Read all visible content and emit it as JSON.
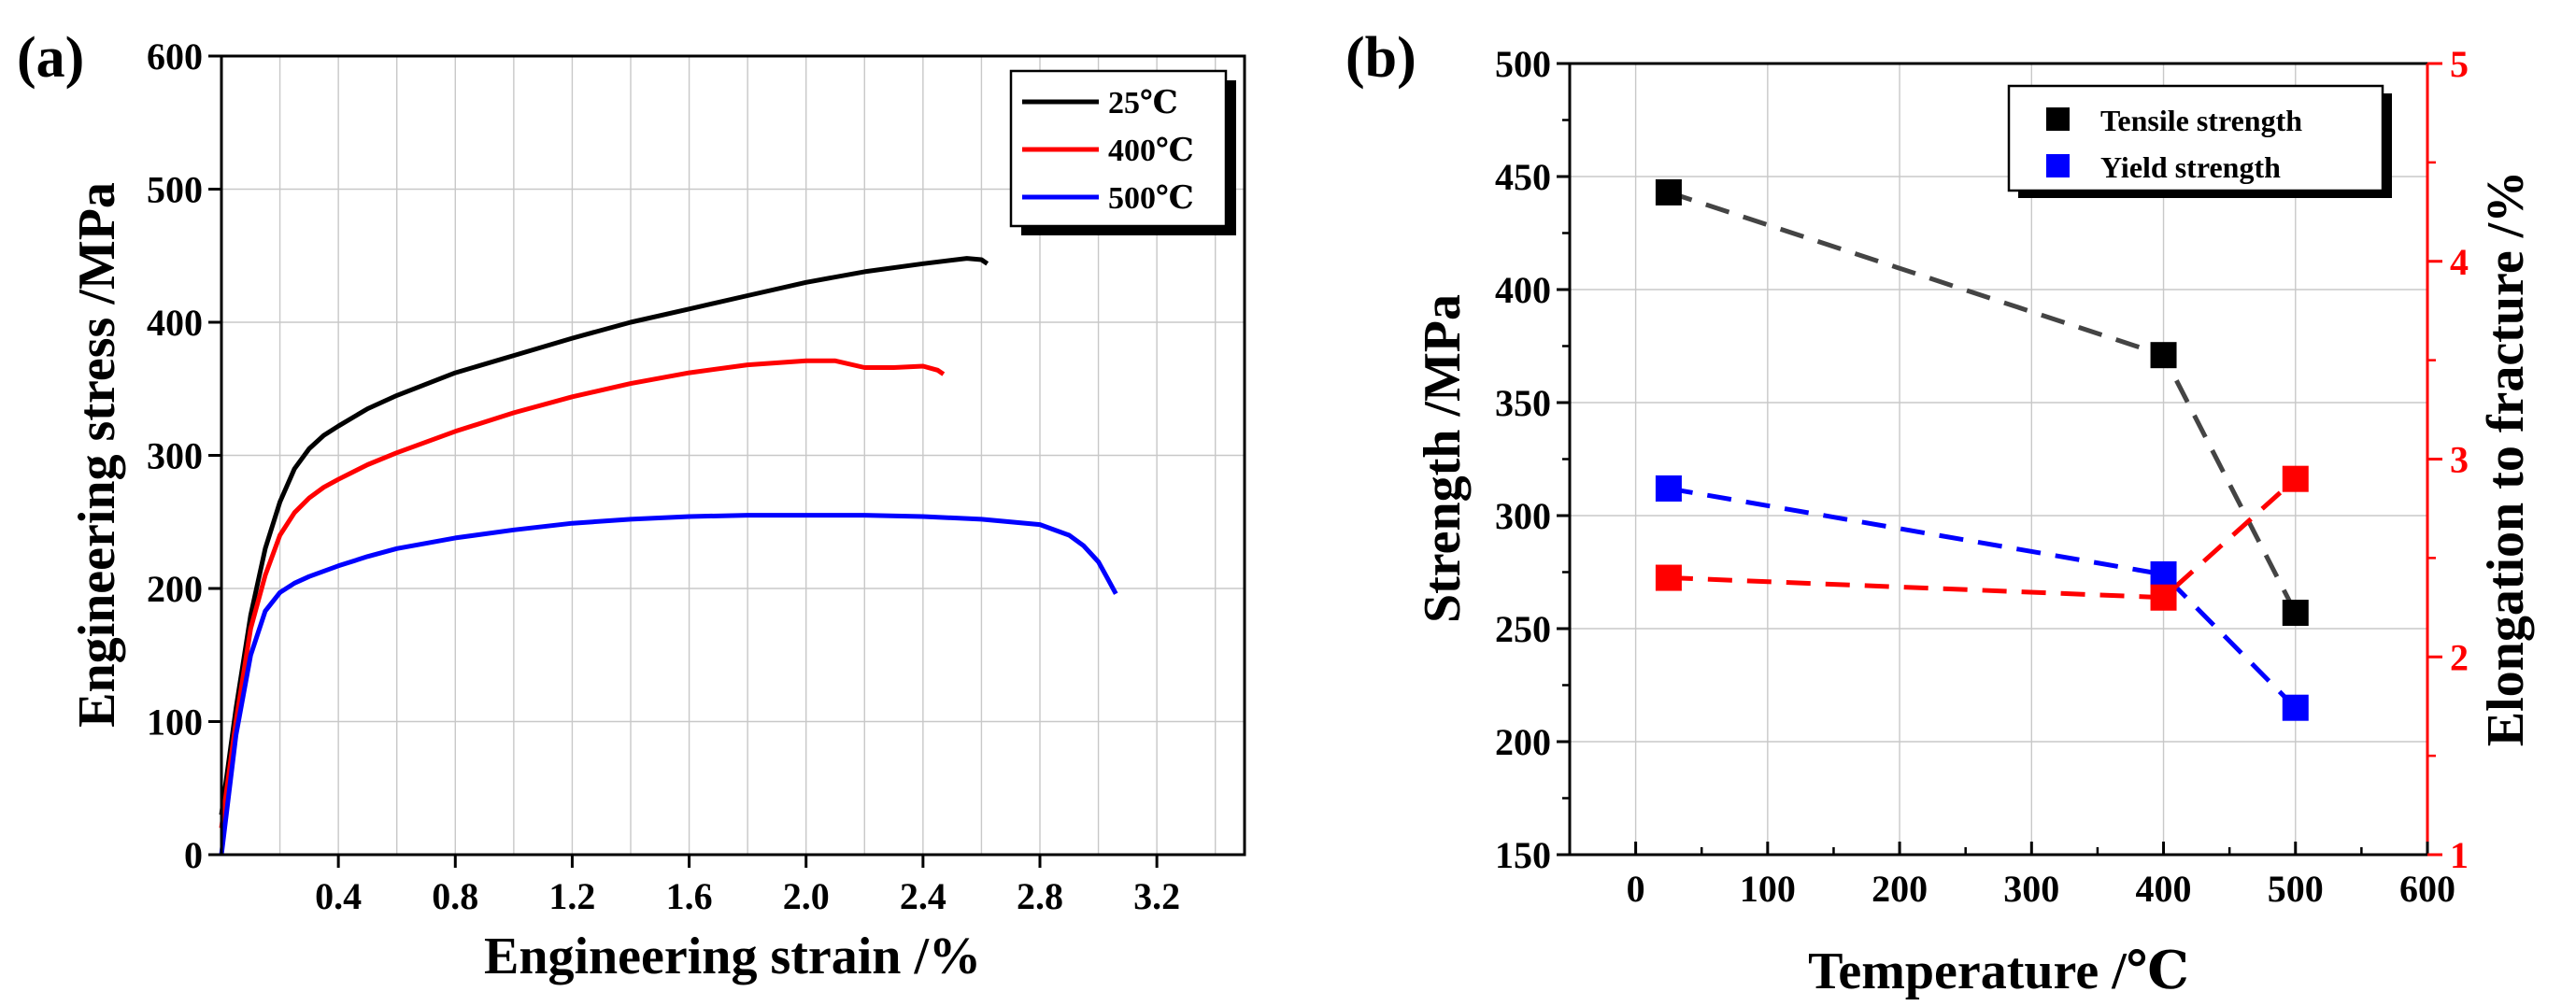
{
  "chart_data": [
    {
      "panel": "(a)",
      "type": "line",
      "xlabel": "Engineering strain /%",
      "ylabel": "Engineering stress /MPa",
      "xlim": [
        0,
        3.5
      ],
      "ylim": [
        0,
        600
      ],
      "xticks": [
        0.4,
        0.8,
        1.2,
        1.6,
        2.0,
        2.4,
        2.8,
        3.2
      ],
      "xtick_labels": [
        "0.4",
        "0.8",
        "1.2",
        "1.6",
        "2.0",
        "2.4",
        "2.8",
        "3.2"
      ],
      "yticks": [
        0,
        100,
        200,
        300,
        400,
        500,
        600
      ],
      "ytick_labels": [
        "0",
        "100",
        "200",
        "300",
        "400",
        "500",
        "600"
      ],
      "grid": true,
      "legend_position": "top-right",
      "series": [
        {
          "name": "25℃",
          "color": "#000000",
          "x": [
            0,
            0.05,
            0.1,
            0.15,
            0.2,
            0.25,
            0.3,
            0.35,
            0.4,
            0.5,
            0.6,
            0.8,
            1.0,
            1.2,
            1.4,
            1.6,
            1.8,
            2.0,
            2.2,
            2.4,
            2.55,
            2.6,
            2.62
          ],
          "y": [
            30,
            110,
            180,
            230,
            265,
            290,
            305,
            315,
            322,
            335,
            345,
            362,
            375,
            388,
            400,
            410,
            420,
            430,
            438,
            444,
            448,
            447,
            444
          ]
        },
        {
          "name": "400℃",
          "color": "#ff0000",
          "x": [
            0,
            0.05,
            0.1,
            0.15,
            0.2,
            0.25,
            0.3,
            0.35,
            0.4,
            0.5,
            0.6,
            0.8,
            1.0,
            1.2,
            1.4,
            1.6,
            1.8,
            2.0,
            2.1,
            2.2,
            2.3,
            2.4,
            2.45,
            2.47
          ],
          "y": [
            20,
            100,
            170,
            210,
            240,
            257,
            268,
            276,
            282,
            293,
            302,
            318,
            332,
            344,
            354,
            362,
            368,
            371,
            371,
            366,
            366,
            367,
            364,
            361
          ]
        },
        {
          "name": "500℃",
          "color": "#0000ff",
          "x": [
            0,
            0.05,
            0.1,
            0.15,
            0.2,
            0.25,
            0.3,
            0.4,
            0.5,
            0.6,
            0.8,
            1.0,
            1.2,
            1.4,
            1.6,
            1.8,
            2.0,
            2.2,
            2.4,
            2.6,
            2.8,
            2.9,
            2.95,
            3.0,
            3.03,
            3.06
          ],
          "y": [
            0,
            90,
            150,
            183,
            197,
            204,
            209,
            217,
            224,
            230,
            238,
            244,
            249,
            252,
            254,
            255,
            255,
            255,
            254,
            252,
            248,
            240,
            232,
            220,
            208,
            196
          ]
        }
      ]
    },
    {
      "panel": "(b)",
      "type": "scatter",
      "xlabel": "Temperature /℃",
      "ylabel": "Strength /MPa",
      "y2label": "Elongation to fracture /%",
      "xlim": [
        -50,
        600
      ],
      "ylim": [
        150,
        500
      ],
      "y2lim": [
        1,
        5
      ],
      "xticks": [
        0,
        100,
        200,
        300,
        400,
        500,
        600
      ],
      "xtick_labels": [
        "0",
        "100",
        "200",
        "300",
        "400",
        "500",
        "600"
      ],
      "yticks": [
        150,
        200,
        250,
        300,
        350,
        400,
        450,
        500
      ],
      "ytick_labels": [
        "150",
        "200",
        "250",
        "300",
        "350",
        "400",
        "450",
        "500"
      ],
      "y2ticks": [
        1,
        2,
        3,
        4,
        5
      ],
      "y2tick_labels": [
        "1",
        "2",
        "3",
        "4",
        "5"
      ],
      "grid": true,
      "legend_position": "top-right",
      "series": [
        {
          "name": "Tensile strength",
          "color": "#000000",
          "line_color": "#444444",
          "axis": "left",
          "in_legend": true,
          "x": [
            25,
            400,
            500
          ],
          "y": [
            443,
            371,
            257
          ]
        },
        {
          "name": "Yield strength",
          "color": "#0000ff",
          "line_color": "#0000ff",
          "axis": "left",
          "in_legend": true,
          "x": [
            25,
            400,
            500
          ],
          "y": [
            312,
            274,
            215
          ]
        },
        {
          "name": "Elongation to fracture",
          "color": "#ff0000",
          "line_color": "#ff0000",
          "axis": "right",
          "in_legend": false,
          "x": [
            25,
            400,
            500
          ],
          "y": [
            2.4,
            2.3,
            2.9
          ]
        }
      ]
    }
  ]
}
